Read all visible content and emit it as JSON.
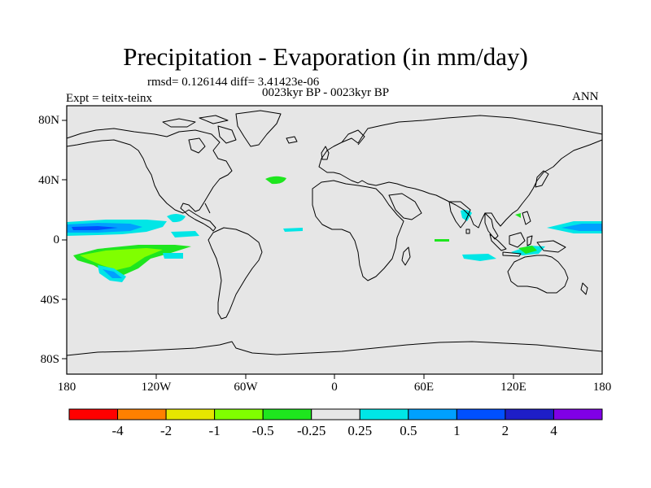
{
  "title": "Precipitation - Evaporation (in mm/day)",
  "stats": "rmsd= 0.126144  diff= 3.41423e-06",
  "period": "0023kyr BP - 0023kyr BP",
  "experiment": "Expt = teitx-teinx",
  "season": "ANN",
  "axes": {
    "y_ticks": [
      "80N",
      "40N",
      "0",
      "40S",
      "80S"
    ],
    "x_ticks": [
      "180",
      "120W",
      "60W",
      "0",
      "60E",
      "120E",
      "180"
    ]
  },
  "colorbar": {
    "colors": [
      "#ff0000",
      "#ff8000",
      "#e6e600",
      "#80ff00",
      "#1ee61e",
      "#e6e6e6",
      "#00e6e6",
      "#00a0ff",
      "#0050ff",
      "#1e1ec8",
      "#8000e6"
    ],
    "labels": [
      "-4",
      "-2",
      "-1",
      "-0.5",
      "-0.25",
      "0.25",
      "0.5",
      "1",
      "2",
      "4"
    ]
  },
  "palette": {
    "ocean": "#e6e6e6",
    "coast": "#000000"
  }
}
